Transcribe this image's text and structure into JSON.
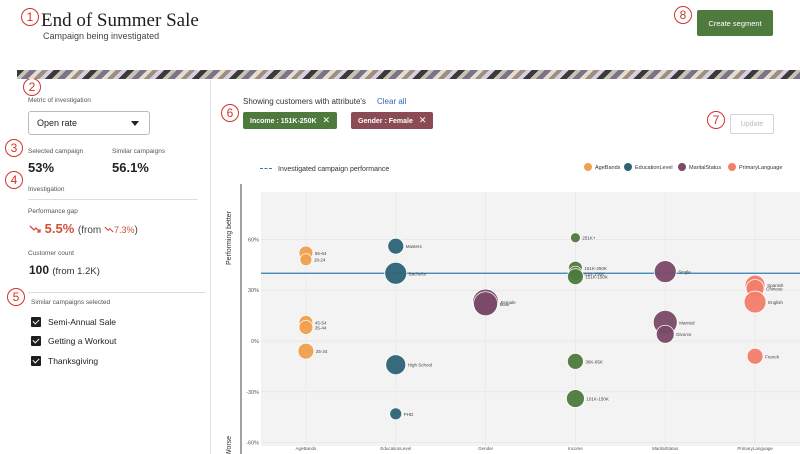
{
  "markers": [
    "1",
    "2",
    "3",
    "4",
    "5",
    "6",
    "7",
    "8"
  ],
  "header": {
    "title": "End of Summer Sale",
    "subtitle": "Campaign being investigated",
    "create_label": "Create segment"
  },
  "left_panel": {
    "metric_label": "Metric of investigation",
    "metric_value": "Open rate",
    "selected_label": "Selected campaign",
    "selected_value": "53%",
    "similar_label": "Similar campaigns",
    "similar_value": "56.1%",
    "investigation_label": "Investigation",
    "gap_label": "Performance gap",
    "gap_value": "5.5%",
    "gap_from_prefix": "(from",
    "gap_from_value": "7.3%",
    "gap_from_suffix": ")",
    "count_label": "Customer count",
    "count_value": "100",
    "count_from": "(from 1.2K)",
    "similar_selected_label": "Similar campaigns selected",
    "campaigns": [
      "Semi-Annual Sale",
      "Getting a Workout",
      "Thanksgiving"
    ]
  },
  "filters": {
    "showing_label": "Showing customers with attribute's",
    "clear_label": "Clear all",
    "chips": [
      {
        "label": "Income : 151K-250K",
        "color": "#4f7a3e"
      },
      {
        "label": "Gender : Female",
        "color": "#8a4b55"
      }
    ],
    "update_label": "Update"
  },
  "chart_data": {
    "type": "scatter",
    "reference_label": "Investigated campaign performance",
    "reference_value": 40,
    "ylabel_top": "Performing better",
    "ylabel_bottom": "Worse",
    "ylim": [
      -62,
      88
    ],
    "yticks": [
      -60,
      -30,
      0,
      30,
      60
    ],
    "ytick_labels": [
      "-60%",
      "-30%",
      "0%",
      "30%",
      "60%"
    ],
    "categories": [
      "AgeBands",
      "EducationLevel",
      "Gender",
      "Income",
      "MaritalStatus",
      "PrimaryLanguage"
    ],
    "series": [
      {
        "name": "AgeBands",
        "color": "#f0a050"
      },
      {
        "name": "EducationLevel",
        "color": "#2e6377"
      },
      {
        "name": "MaritalStatus",
        "color": "#7a4a68"
      },
      {
        "name": "PrimaryLanguage",
        "color": "#f47f6b"
      }
    ],
    "points": [
      {
        "cat": 0,
        "y": 52,
        "size": 7,
        "label": "55-64",
        "series": 0
      },
      {
        "cat": 0,
        "y": 48,
        "size": 6,
        "label": "18-24",
        "series": 0
      },
      {
        "cat": 0,
        "y": 11,
        "size": 7,
        "label": "45-54",
        "series": 0
      },
      {
        "cat": 0,
        "y": 8,
        "size": 7,
        "label": "35-44",
        "series": 0
      },
      {
        "cat": 0,
        "y": -6,
        "size": 8,
        "label": "25-34",
        "series": 0
      },
      {
        "cat": 1,
        "y": 56,
        "size": 8,
        "label": "Masters",
        "series": 1
      },
      {
        "cat": 1,
        "y": 40,
        "size": 11,
        "label": "Bachelor",
        "series": 1
      },
      {
        "cat": 1,
        "y": -14,
        "size": 10,
        "label": "High School",
        "series": 1
      },
      {
        "cat": 1,
        "y": -43,
        "size": 6,
        "label": "PHD",
        "series": 1
      },
      {
        "cat": 2,
        "y": 23,
        "size": 13,
        "label": "Female",
        "series": 2
      },
      {
        "cat": 2,
        "y": 22,
        "size": 12,
        "label": "Male",
        "series": 2
      },
      {
        "cat": 3,
        "y": 61,
        "size": 5,
        "label": "251K+",
        "series": -1,
        "color": "#4f7a3e"
      },
      {
        "cat": 3,
        "y": 43,
        "size": 7,
        "label": "151K-250K",
        "series": -1,
        "color": "#4f7a3e"
      },
      {
        "cat": 3,
        "y": 40,
        "size": 7,
        "label": "61K-150K",
        "series": -1,
        "color": "#4f7a3e"
      },
      {
        "cat": 3,
        "y": 38,
        "size": 8,
        "label": "151K-150K",
        "series": -1,
        "color": "#4f7a3e"
      },
      {
        "cat": 3,
        "y": -12,
        "size": 8,
        "label": "36K-65K",
        "series": -1,
        "color": "#4f7a3e"
      },
      {
        "cat": 3,
        "y": -34,
        "size": 9,
        "label": "101K-150K",
        "series": -1,
        "color": "#4f7a3e"
      },
      {
        "cat": 4,
        "y": 41,
        "size": 11,
        "label": "Single",
        "series": 2
      },
      {
        "cat": 4,
        "y": 11,
        "size": 12,
        "label": "Married",
        "series": 2
      },
      {
        "cat": 4,
        "y": 4,
        "size": 9,
        "label": "Divorce",
        "series": 2
      },
      {
        "cat": 5,
        "y": 33,
        "size": 10,
        "label": "Spanish",
        "series": 3
      },
      {
        "cat": 5,
        "y": 31,
        "size": 9,
        "label": "Chinese",
        "series": 3
      },
      {
        "cat": 5,
        "y": 23,
        "size": 11,
        "label": "English",
        "series": 3
      },
      {
        "cat": 5,
        "y": -9,
        "size": 8,
        "label": "French",
        "series": 3
      }
    ]
  }
}
